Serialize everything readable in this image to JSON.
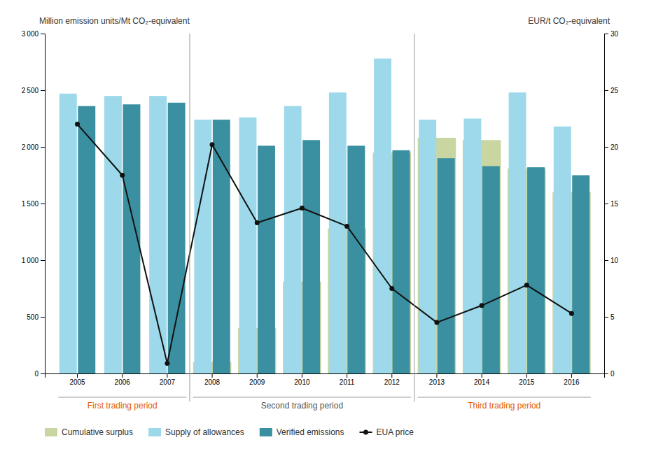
{
  "chart_data": {
    "type": "bar",
    "categories": [
      "2005",
      "2006",
      "2007",
      "2008",
      "2009",
      "2010",
      "2011",
      "2012",
      "2013",
      "2014",
      "2015",
      "2016"
    ],
    "series": [
      {
        "name": "Cumulative surplus",
        "type": "area",
        "color": "#c9d6a2",
        "values": [
          0,
          0,
          0,
          100,
          400,
          810,
          1280,
          1950,
          2080,
          2060,
          1810,
          1600
        ]
      },
      {
        "name": "Supply of allowances",
        "type": "bar",
        "color": "#9dd9ea",
        "values": [
          2470,
          2450,
          2450,
          2240,
          2260,
          2360,
          2480,
          2780,
          2240,
          2250,
          2480,
          2180
        ]
      },
      {
        "name": "Verified emissions",
        "type": "bar",
        "color": "#3a8fa0",
        "values": [
          2360,
          2375,
          2390,
          2240,
          2010,
          2060,
          2010,
          1970,
          1900,
          1830,
          1820,
          1750
        ]
      },
      {
        "name": "EUA price",
        "type": "line",
        "color": "#111111",
        "marker": "circle",
        "axis": "y2",
        "values": [
          22.0,
          17.5,
          0.9,
          20.2,
          13.3,
          14.6,
          13.0,
          7.5,
          4.5,
          6.0,
          7.8,
          5.3
        ]
      }
    ],
    "y_label": "Million emission units/Mt CO₂-equivalent",
    "y2_label": "EUR/t CO₂-equivalent",
    "ylim": [
      0,
      3000
    ],
    "yticks": [
      0,
      500,
      {
        "value": 1000,
        "label": "1 000"
      },
      {
        "value": 1500,
        "label": "1 500"
      },
      {
        "value": 2000,
        "label": "2 000"
      },
      {
        "value": 2500,
        "label": "2 500"
      },
      {
        "value": 3000,
        "label": "3 000"
      }
    ],
    "y2lim": [
      0,
      30
    ],
    "y2ticks": [
      0,
      5,
      10,
      15,
      20,
      25,
      30
    ],
    "annotations": [
      {
        "text": "First trading period",
        "color": "#e05c00",
        "start": "2005",
        "end": "2007"
      },
      {
        "text": "Second trading period",
        "color": "#555555",
        "start": "2008",
        "end": "2012"
      },
      {
        "text": "Third trading period",
        "color": "#e05c00",
        "start": "2013",
        "end": "2016"
      }
    ],
    "grid": false,
    "legend": "bottom"
  }
}
